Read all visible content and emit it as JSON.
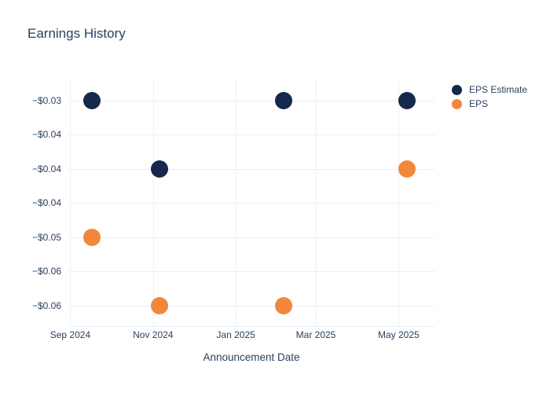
{
  "chart_data": {
    "type": "scatter",
    "title": "Earnings History",
    "xlabel": "Announcement Date",
    "ylabel": "",
    "grid": true,
    "legend_position": "right",
    "background_color": "#ffffff",
    "grid_color": "#ebf0f8",
    "text_color": "#2a3f5f",
    "x_axis": {
      "range": [
        "2024-08-30",
        "2025-05-28"
      ],
      "ticks": [
        {
          "label": "Sep 2024",
          "date": "2024-09-01"
        },
        {
          "label": "Nov 2024",
          "date": "2024-11-01"
        },
        {
          "label": "Jan 2025",
          "date": "2025-01-01"
        },
        {
          "label": "Mar 2025",
          "date": "2025-03-01"
        },
        {
          "label": "May 2025",
          "date": "2025-05-01"
        }
      ]
    },
    "y_axis": {
      "range": [
        -0.063,
        -0.0267
      ],
      "ticks": [
        {
          "label": "−$0.03",
          "value": -0.03
        },
        {
          "label": "−$0.04",
          "value": -0.035
        },
        {
          "label": "−$0.04",
          "value": -0.04
        },
        {
          "label": "−$0.04",
          "value": -0.045
        },
        {
          "label": "−$0.05",
          "value": -0.05
        },
        {
          "label": "−$0.06",
          "value": -0.055
        },
        {
          "label": "−$0.06",
          "value": -0.06
        }
      ]
    },
    "series": [
      {
        "name": "EPS Estimate",
        "color": "#14294b",
        "marker_size": 22,
        "points": [
          {
            "date": "2024-09-17",
            "value": -0.03
          },
          {
            "date": "2024-11-06",
            "value": -0.04
          },
          {
            "date": "2025-02-05",
            "value": -0.03
          },
          {
            "date": "2025-05-07",
            "value": -0.03
          }
        ]
      },
      {
        "name": "EPS",
        "color": "#f2873c",
        "marker_size": 22,
        "points": [
          {
            "date": "2024-09-17",
            "value": -0.05
          },
          {
            "date": "2024-11-06",
            "value": -0.06
          },
          {
            "date": "2025-02-05",
            "value": -0.06
          },
          {
            "date": "2025-05-07",
            "value": -0.04
          }
        ]
      }
    ]
  }
}
